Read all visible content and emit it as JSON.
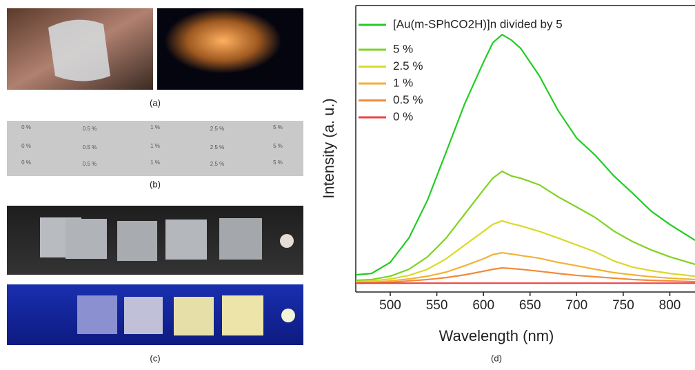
{
  "panel_labels": {
    "a": "(a)",
    "b": "(b)",
    "c": "(c)",
    "d": "(d)"
  },
  "photo_b_labels": [
    "0 %",
    "0.5 %",
    "1 %",
    "2.5 %",
    "5 %"
  ],
  "chart_data": {
    "type": "line",
    "x_label": "Wavelength (nm)",
    "y_label": "Intensity (a. u.)",
    "x": [
      463,
      480,
      500,
      520,
      540,
      560,
      580,
      600,
      610,
      620,
      630,
      640,
      660,
      680,
      700,
      720,
      740,
      760,
      780,
      800,
      827
    ],
    "xlim": [
      463,
      827
    ],
    "xticks": [
      500,
      550,
      600,
      650,
      700,
      750,
      800
    ],
    "ylim": [
      0,
      100
    ],
    "series": [
      {
        "name": "[Au(m-SPhCO2H)]n divided by 5",
        "color": "#22cc22",
        "values": [
          6.2,
          6.7,
          10.7,
          19.5,
          33.2,
          50.6,
          68.1,
          83.0,
          90.0,
          93.0,
          91.0,
          88.0,
          78.1,
          65.6,
          55.6,
          49.4,
          41.9,
          35.7,
          29.2,
          24.4,
          18.7
        ]
      },
      {
        "name": "5 %",
        "color": "#7ed321",
        "values": [
          4.2,
          4.5,
          5.7,
          8.2,
          12.7,
          19.5,
          28.2,
          36.9,
          41.1,
          43.6,
          41.9,
          41.1,
          38.7,
          34.4,
          30.7,
          26.9,
          22.0,
          18.2,
          15.2,
          12.7,
          10.0
        ]
      },
      {
        "name": "2.5 %",
        "color": "#d9d92a",
        "values": [
          3.7,
          4.0,
          4.7,
          6.0,
          8.2,
          12.0,
          17.0,
          21.9,
          24.4,
          25.7,
          24.7,
          23.9,
          21.9,
          19.5,
          17.0,
          14.5,
          11.2,
          9.0,
          7.7,
          6.7,
          5.7
        ]
      },
      {
        "name": "1 %",
        "color": "#f2b233",
        "values": [
          3.5,
          3.5,
          4.0,
          4.7,
          5.7,
          7.2,
          9.5,
          12.0,
          13.5,
          14.2,
          13.7,
          13.2,
          12.2,
          10.7,
          9.5,
          8.2,
          7.0,
          6.2,
          5.5,
          5.0,
          4.5
        ]
      },
      {
        "name": "0.5 %",
        "color": "#f08a3a",
        "values": [
          3.2,
          3.2,
          3.5,
          4.0,
          4.5,
          5.2,
          6.2,
          7.5,
          8.2,
          8.7,
          8.5,
          8.2,
          7.5,
          6.7,
          6.0,
          5.5,
          5.0,
          4.5,
          4.2,
          4.0,
          3.7
        ]
      },
      {
        "name": "0 %",
        "color": "#ee4444",
        "values": [
          3.2,
          3.2,
          3.2,
          3.2,
          3.2,
          3.2,
          3.2,
          3.2,
          3.2,
          3.2,
          3.2,
          3.2,
          3.2,
          3.2,
          3.2,
          3.2,
          3.2,
          3.2,
          3.2,
          3.2,
          3.2
        ]
      }
    ]
  }
}
